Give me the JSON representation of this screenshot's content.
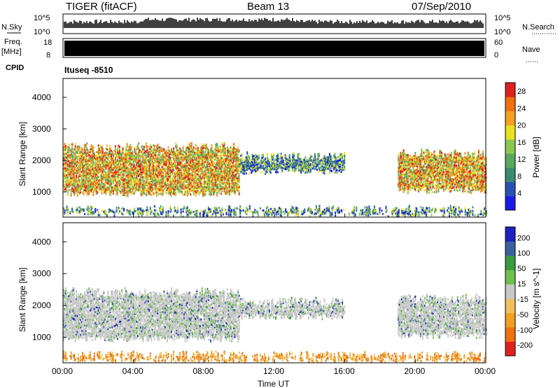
{
  "header": {
    "station": "TIGER (fitACF)",
    "beam": "Beam 13",
    "date": "07/Sep/2010"
  },
  "status_panels": {
    "nsky_label": "N.Sky",
    "nsky_ticks": [
      "10^5",
      "10^0"
    ],
    "nsearch_label": "N.Search",
    "nsearch_ticks": [
      "10^5",
      "10^0"
    ],
    "freq_label": "Freq.",
    "freq_unit": "[MHz]",
    "freq_ticks": [
      "18",
      "8"
    ],
    "nave_label": "Nave",
    "nave_ticks": [
      "60",
      "0"
    ],
    "cpid_label": "CPID",
    "cpid_value": "Ituseq -8510"
  },
  "chart_data": [
    {
      "type": "heatmap",
      "panel": "power",
      "xlabel": "",
      "ylabel": "Slant Range [km]",
      "x_ticks": [
        "00:00",
        "04:00",
        "08:00",
        "12:00",
        "16:00",
        "20:00",
        "00:00"
      ],
      "y_ticks": [
        "1000",
        "2000",
        "3000",
        "4000"
      ],
      "xlim_hours": [
        0,
        24
      ],
      "ylim_km": [
        200,
        4600
      ],
      "colorbar": {
        "label": "Power [dB]",
        "ticks": [
          "4",
          "8",
          "12",
          "16",
          "20",
          "24",
          "28"
        ],
        "range": [
          0,
          30
        ],
        "colors": [
          "#1a1ae6",
          "#2a52b5",
          "#3a8a70",
          "#5aa860",
          "#8ac850",
          "#e8e020",
          "#f5a020",
          "#f07010",
          "#e02020"
        ]
      },
      "scatter_regions_km": [
        {
          "t0": 0,
          "t1": 10,
          "lo": 900,
          "hi": 2600,
          "c": "mixed-high"
        },
        {
          "t0": 10,
          "t1": 16,
          "lo": 1600,
          "hi": 2300,
          "c": "mixed-low"
        },
        {
          "t0": 19,
          "t1": 24,
          "lo": 1000,
          "hi": 2400,
          "c": "mixed-high"
        },
        {
          "t0": 0,
          "t1": 24,
          "lo": 250,
          "hi": 600,
          "c": "mixed-low"
        }
      ]
    },
    {
      "type": "heatmap",
      "panel": "velocity",
      "xlabel": "Time UT",
      "ylabel": "Slant Range [km]",
      "x_ticks": [
        "00:00",
        "04:00",
        "08:00",
        "12:00",
        "16:00",
        "20:00",
        "00:00"
      ],
      "y_ticks": [
        "1000",
        "2000",
        "3000",
        "4000"
      ],
      "xlim_hours": [
        0,
        24
      ],
      "ylim_km": [
        200,
        4600
      ],
      "colorbar": {
        "label": "Velocity [m s^-1]",
        "ticks": [
          "200",
          "100",
          "50",
          "15",
          "-15",
          "-50",
          "-100",
          "-200"
        ],
        "colors": [
          "#2020c0",
          "#3a60a0",
          "#3a9a40",
          "#70c050",
          "#c8c8c8",
          "#f0c060",
          "#f0a020",
          "#f07010",
          "#e02020"
        ]
      },
      "scatter_regions_km": [
        {
          "t0": 0,
          "t1": 10,
          "lo": 900,
          "hi": 2600,
          "c": "grey"
        },
        {
          "t0": 10,
          "t1": 16,
          "lo": 1600,
          "hi": 2300,
          "c": "grey"
        },
        {
          "t0": 19,
          "t1": 24,
          "lo": 1000,
          "hi": 2400,
          "c": "grey"
        },
        {
          "t0": 0,
          "t1": 24,
          "lo": 250,
          "hi": 600,
          "c": "orange"
        }
      ]
    }
  ]
}
